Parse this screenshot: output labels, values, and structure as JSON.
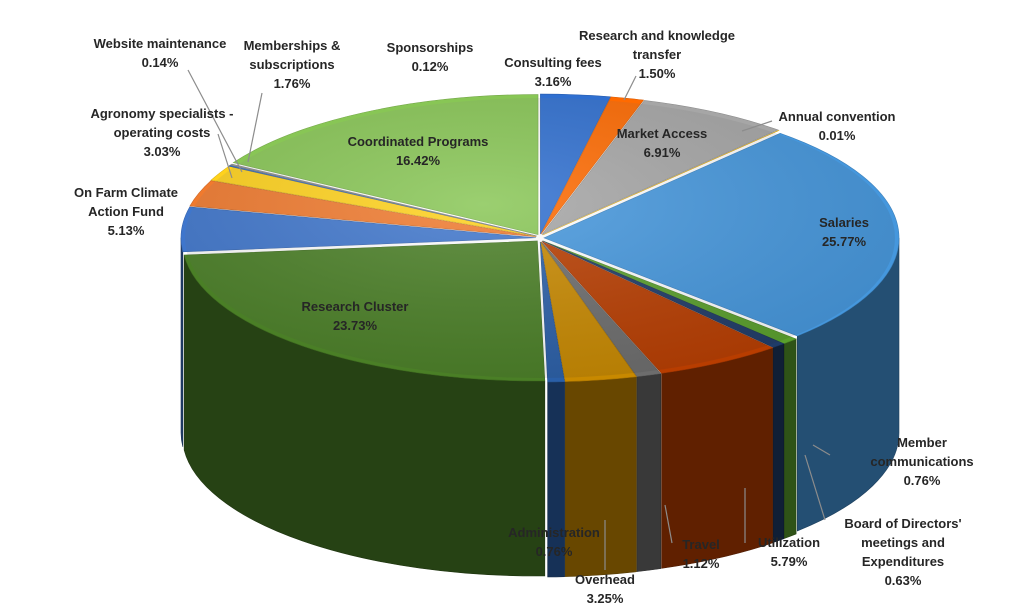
{
  "chart_data": {
    "type": "pie",
    "style": "3d-exploded",
    "legend": "none",
    "slices": [
      {
        "label": "Consulting fees",
        "value_text": "3.16%",
        "value": 3.16,
        "color": "#2f6fd0"
      },
      {
        "label": "Research and knowledge transfer",
        "value_text": "1.50%",
        "value": 1.5,
        "color": "#ff6a00"
      },
      {
        "label": "Market Access",
        "value_text": "6.91%",
        "value": 6.91,
        "color": "#a6a6a6"
      },
      {
        "label": "Annual convention",
        "value_text": "0.01%",
        "value": 0.01,
        "color": "#ffc000"
      },
      {
        "label": "Salaries",
        "value_text": "25.77%",
        "value": 25.77,
        "color": "#4597dd"
      },
      {
        "label": "Member communications",
        "value_text": "0.76%",
        "value": 0.76,
        "color": "#5aa02c"
      },
      {
        "label": "Board of Directors' meetings and Expenditures",
        "value_text": "0.63%",
        "value": 0.63,
        "color": "#1f3b68"
      },
      {
        "label": "Utilization",
        "value_text": "5.79%",
        "value": 5.79,
        "color": "#b83d00"
      },
      {
        "label": "Travel",
        "value_text": "1.12%",
        "value": 1.12,
        "color": "#6d6d6d"
      },
      {
        "label": "Overhead",
        "value_text": "3.25%",
        "value": 3.25,
        "color": "#c88900"
      },
      {
        "label": "Administration",
        "value_text": "0.76%",
        "value": 0.76,
        "color": "#2a5fa8"
      },
      {
        "label": "Research Cluster",
        "value_text": "23.73%",
        "value": 23.73,
        "color": "#4a7f26"
      },
      {
        "label": "On Farm Climate Action Fund",
        "value_text": "5.13%",
        "value": 5.13,
        "color": "#3f76cc"
      },
      {
        "label": "Agronomy specialists - operating costs",
        "value_text": "3.03%",
        "value": 3.03,
        "color": "#f07a2e"
      },
      {
        "label": "Memberships & subscriptions",
        "value_text": "1.76%",
        "value": 1.76,
        "color": "#ffd21c"
      },
      {
        "label": "Website maintenance",
        "value_text": "0.14%",
        "value": 0.14,
        "color": "#3e72c0"
      },
      {
        "label": "Sponsorships",
        "value_text": "0.12%",
        "value": 0.12,
        "color": "#9a9a9a"
      },
      {
        "label": "Coordinated Programs",
        "value_text": "16.42%",
        "value": 16.42,
        "color": "#88c655"
      }
    ]
  }
}
